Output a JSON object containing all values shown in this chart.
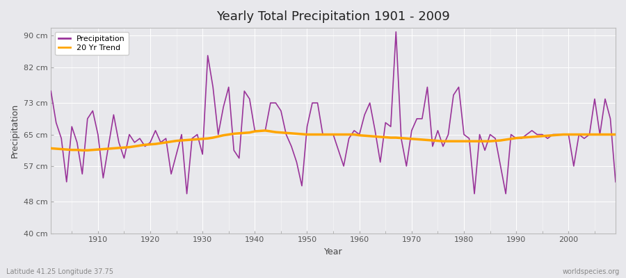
{
  "title": "Yearly Total Precipitation 1901 - 2009",
  "xlabel": "Year",
  "ylabel": "Precipitation",
  "subtitle_left": "Latitude 41.25 Longitude 37.75",
  "subtitle_right": "worldspecies.org",
  "ylim": [
    40,
    92
  ],
  "yticks": [
    40,
    48,
    57,
    65,
    73,
    82,
    90
  ],
  "ytick_labels": [
    "40 cm",
    "48 cm",
    "57 cm",
    "65 cm",
    "73 cm",
    "82 cm",
    "90 cm"
  ],
  "xlim": [
    1901,
    2009
  ],
  "xticks": [
    1910,
    1920,
    1930,
    1940,
    1950,
    1960,
    1970,
    1980,
    1990,
    2000
  ],
  "precip_color": "#993399",
  "trend_color": "#FFA500",
  "bg_color": "#E8E8EC",
  "plot_bg": "#E8E8EC",
  "years": [
    1901,
    1902,
    1903,
    1904,
    1905,
    1906,
    1907,
    1908,
    1909,
    1910,
    1911,
    1912,
    1913,
    1914,
    1915,
    1916,
    1917,
    1918,
    1919,
    1920,
    1921,
    1922,
    1923,
    1924,
    1925,
    1926,
    1927,
    1928,
    1929,
    1930,
    1931,
    1932,
    1933,
    1934,
    1935,
    1936,
    1937,
    1938,
    1939,
    1940,
    1941,
    1942,
    1943,
    1944,
    1945,
    1946,
    1947,
    1948,
    1949,
    1950,
    1951,
    1952,
    1953,
    1954,
    1955,
    1956,
    1957,
    1958,
    1959,
    1960,
    1961,
    1962,
    1963,
    1964,
    1965,
    1966,
    1967,
    1968,
    1969,
    1970,
    1971,
    1972,
    1973,
    1974,
    1975,
    1976,
    1977,
    1978,
    1979,
    1980,
    1981,
    1982,
    1983,
    1984,
    1985,
    1986,
    1987,
    1988,
    1989,
    1990,
    1991,
    1992,
    1993,
    1994,
    1995,
    1996,
    1997,
    1998,
    1999,
    2000,
    2001,
    2002,
    2003,
    2004,
    2005,
    2006,
    2007,
    2008,
    2009
  ],
  "precipitation": [
    76,
    68,
    64,
    53,
    67,
    63,
    55,
    69,
    71,
    65,
    54,
    62,
    70,
    63,
    59,
    65,
    63,
    64,
    62,
    63,
    66,
    63,
    64,
    55,
    60,
    65,
    50,
    64,
    65,
    60,
    85,
    77,
    65,
    72,
    77,
    61,
    59,
    76,
    74,
    66,
    66,
    66,
    73,
    73,
    71,
    65,
    62,
    58,
    52,
    67,
    73,
    73,
    65,
    65,
    65,
    61,
    57,
    64,
    66,
    65,
    70,
    73,
    66,
    58,
    68,
    67,
    91,
    64,
    57,
    66,
    69,
    69,
    77,
    62,
    66,
    62,
    65,
    75,
    77,
    65,
    64,
    50,
    65,
    61,
    65,
    64,
    57,
    50,
    65,
    64,
    64,
    65,
    66,
    65,
    65,
    64,
    65,
    65,
    65,
    65,
    57,
    65,
    64,
    65,
    74,
    65,
    74,
    69,
    53
  ],
  "trend": [
    61.5,
    61.4,
    61.3,
    61.2,
    61.1,
    61.1,
    61.0,
    61.0,
    61.1,
    61.2,
    61.3,
    61.4,
    61.5,
    61.6,
    61.7,
    61.8,
    62.0,
    62.2,
    62.4,
    62.5,
    62.6,
    62.8,
    63.0,
    63.2,
    63.4,
    63.5,
    63.6,
    63.7,
    63.8,
    63.9,
    64.0,
    64.2,
    64.5,
    64.8,
    65.0,
    65.2,
    65.3,
    65.4,
    65.5,
    65.8,
    65.9,
    66.0,
    65.8,
    65.6,
    65.5,
    65.4,
    65.3,
    65.2,
    65.1,
    65.0,
    65.0,
    65.0,
    65.0,
    65.0,
    65.0,
    65.0,
    65.0,
    65.0,
    65.0,
    64.8,
    64.7,
    64.6,
    64.5,
    64.4,
    64.3,
    64.2,
    64.2,
    64.1,
    64.0,
    63.9,
    63.8,
    63.7,
    63.6,
    63.5,
    63.4,
    63.3,
    63.3,
    63.3,
    63.3,
    63.3,
    63.3,
    63.3,
    63.3,
    63.3,
    63.3,
    63.4,
    63.5,
    63.7,
    63.9,
    64.1,
    64.2,
    64.3,
    64.4,
    64.5,
    64.6,
    64.7,
    64.8,
    64.9,
    65.0,
    65.0,
    65.0,
    65.0,
    65.0,
    65.0,
    65.0,
    65.0,
    65.0,
    65.0,
    65.0
  ]
}
